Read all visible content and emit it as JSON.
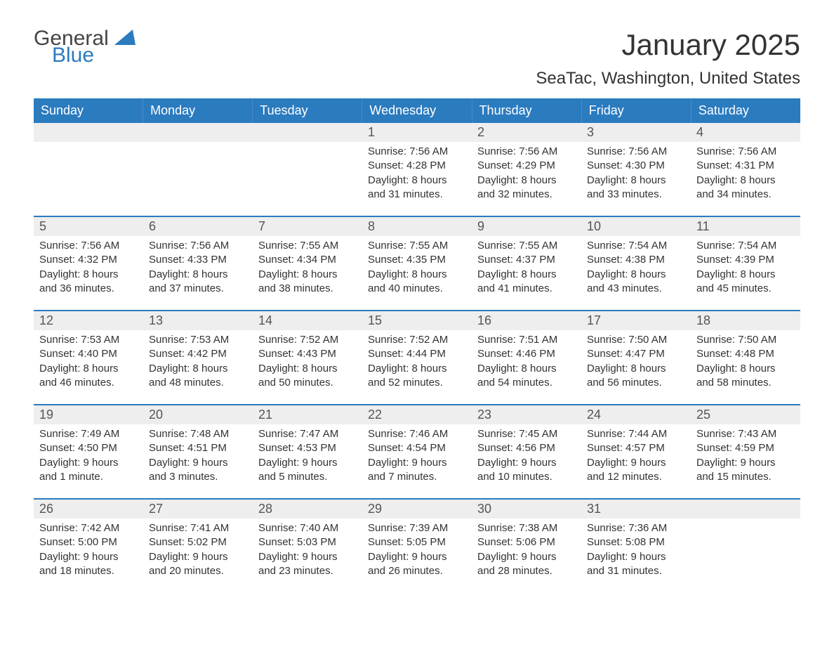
{
  "brand": {
    "general": "General",
    "blue": "Blue",
    "sail_color": "#2b7bbf"
  },
  "header": {
    "month_title": "January 2025",
    "location": "SeaTac, Washington, United States"
  },
  "colors": {
    "header_bg": "#2b7bbf",
    "header_fg": "#ffffff",
    "day_number_bg": "#eeeeee",
    "text": "#333333",
    "row_divider": "#2b7bbf",
    "background": "#ffffff"
  },
  "days_of_week": [
    "Sunday",
    "Monday",
    "Tuesday",
    "Wednesday",
    "Thursday",
    "Friday",
    "Saturday"
  ],
  "weeks": [
    [
      {
        "blank": true
      },
      {
        "blank": true
      },
      {
        "blank": true
      },
      {
        "n": "1",
        "sunrise": "Sunrise: 7:56 AM",
        "sunset": "Sunset: 4:28 PM",
        "daylight1": "Daylight: 8 hours",
        "daylight2": "and 31 minutes."
      },
      {
        "n": "2",
        "sunrise": "Sunrise: 7:56 AM",
        "sunset": "Sunset: 4:29 PM",
        "daylight1": "Daylight: 8 hours",
        "daylight2": "and 32 minutes."
      },
      {
        "n": "3",
        "sunrise": "Sunrise: 7:56 AM",
        "sunset": "Sunset: 4:30 PM",
        "daylight1": "Daylight: 8 hours",
        "daylight2": "and 33 minutes."
      },
      {
        "n": "4",
        "sunrise": "Sunrise: 7:56 AM",
        "sunset": "Sunset: 4:31 PM",
        "daylight1": "Daylight: 8 hours",
        "daylight2": "and 34 minutes."
      }
    ],
    [
      {
        "n": "5",
        "sunrise": "Sunrise: 7:56 AM",
        "sunset": "Sunset: 4:32 PM",
        "daylight1": "Daylight: 8 hours",
        "daylight2": "and 36 minutes."
      },
      {
        "n": "6",
        "sunrise": "Sunrise: 7:56 AM",
        "sunset": "Sunset: 4:33 PM",
        "daylight1": "Daylight: 8 hours",
        "daylight2": "and 37 minutes."
      },
      {
        "n": "7",
        "sunrise": "Sunrise: 7:55 AM",
        "sunset": "Sunset: 4:34 PM",
        "daylight1": "Daylight: 8 hours",
        "daylight2": "and 38 minutes."
      },
      {
        "n": "8",
        "sunrise": "Sunrise: 7:55 AM",
        "sunset": "Sunset: 4:35 PM",
        "daylight1": "Daylight: 8 hours",
        "daylight2": "and 40 minutes."
      },
      {
        "n": "9",
        "sunrise": "Sunrise: 7:55 AM",
        "sunset": "Sunset: 4:37 PM",
        "daylight1": "Daylight: 8 hours",
        "daylight2": "and 41 minutes."
      },
      {
        "n": "10",
        "sunrise": "Sunrise: 7:54 AM",
        "sunset": "Sunset: 4:38 PM",
        "daylight1": "Daylight: 8 hours",
        "daylight2": "and 43 minutes."
      },
      {
        "n": "11",
        "sunrise": "Sunrise: 7:54 AM",
        "sunset": "Sunset: 4:39 PM",
        "daylight1": "Daylight: 8 hours",
        "daylight2": "and 45 minutes."
      }
    ],
    [
      {
        "n": "12",
        "sunrise": "Sunrise: 7:53 AM",
        "sunset": "Sunset: 4:40 PM",
        "daylight1": "Daylight: 8 hours",
        "daylight2": "and 46 minutes."
      },
      {
        "n": "13",
        "sunrise": "Sunrise: 7:53 AM",
        "sunset": "Sunset: 4:42 PM",
        "daylight1": "Daylight: 8 hours",
        "daylight2": "and 48 minutes."
      },
      {
        "n": "14",
        "sunrise": "Sunrise: 7:52 AM",
        "sunset": "Sunset: 4:43 PM",
        "daylight1": "Daylight: 8 hours",
        "daylight2": "and 50 minutes."
      },
      {
        "n": "15",
        "sunrise": "Sunrise: 7:52 AM",
        "sunset": "Sunset: 4:44 PM",
        "daylight1": "Daylight: 8 hours",
        "daylight2": "and 52 minutes."
      },
      {
        "n": "16",
        "sunrise": "Sunrise: 7:51 AM",
        "sunset": "Sunset: 4:46 PM",
        "daylight1": "Daylight: 8 hours",
        "daylight2": "and 54 minutes."
      },
      {
        "n": "17",
        "sunrise": "Sunrise: 7:50 AM",
        "sunset": "Sunset: 4:47 PM",
        "daylight1": "Daylight: 8 hours",
        "daylight2": "and 56 minutes."
      },
      {
        "n": "18",
        "sunrise": "Sunrise: 7:50 AM",
        "sunset": "Sunset: 4:48 PM",
        "daylight1": "Daylight: 8 hours",
        "daylight2": "and 58 minutes."
      }
    ],
    [
      {
        "n": "19",
        "sunrise": "Sunrise: 7:49 AM",
        "sunset": "Sunset: 4:50 PM",
        "daylight1": "Daylight: 9 hours",
        "daylight2": "and 1 minute."
      },
      {
        "n": "20",
        "sunrise": "Sunrise: 7:48 AM",
        "sunset": "Sunset: 4:51 PM",
        "daylight1": "Daylight: 9 hours",
        "daylight2": "and 3 minutes."
      },
      {
        "n": "21",
        "sunrise": "Sunrise: 7:47 AM",
        "sunset": "Sunset: 4:53 PM",
        "daylight1": "Daylight: 9 hours",
        "daylight2": "and 5 minutes."
      },
      {
        "n": "22",
        "sunrise": "Sunrise: 7:46 AM",
        "sunset": "Sunset: 4:54 PM",
        "daylight1": "Daylight: 9 hours",
        "daylight2": "and 7 minutes."
      },
      {
        "n": "23",
        "sunrise": "Sunrise: 7:45 AM",
        "sunset": "Sunset: 4:56 PM",
        "daylight1": "Daylight: 9 hours",
        "daylight2": "and 10 minutes."
      },
      {
        "n": "24",
        "sunrise": "Sunrise: 7:44 AM",
        "sunset": "Sunset: 4:57 PM",
        "daylight1": "Daylight: 9 hours",
        "daylight2": "and 12 minutes."
      },
      {
        "n": "25",
        "sunrise": "Sunrise: 7:43 AM",
        "sunset": "Sunset: 4:59 PM",
        "daylight1": "Daylight: 9 hours",
        "daylight2": "and 15 minutes."
      }
    ],
    [
      {
        "n": "26",
        "sunrise": "Sunrise: 7:42 AM",
        "sunset": "Sunset: 5:00 PM",
        "daylight1": "Daylight: 9 hours",
        "daylight2": "and 18 minutes."
      },
      {
        "n": "27",
        "sunrise": "Sunrise: 7:41 AM",
        "sunset": "Sunset: 5:02 PM",
        "daylight1": "Daylight: 9 hours",
        "daylight2": "and 20 minutes."
      },
      {
        "n": "28",
        "sunrise": "Sunrise: 7:40 AM",
        "sunset": "Sunset: 5:03 PM",
        "daylight1": "Daylight: 9 hours",
        "daylight2": "and 23 minutes."
      },
      {
        "n": "29",
        "sunrise": "Sunrise: 7:39 AM",
        "sunset": "Sunset: 5:05 PM",
        "daylight1": "Daylight: 9 hours",
        "daylight2": "and 26 minutes."
      },
      {
        "n": "30",
        "sunrise": "Sunrise: 7:38 AM",
        "sunset": "Sunset: 5:06 PM",
        "daylight1": "Daylight: 9 hours",
        "daylight2": "and 28 minutes."
      },
      {
        "n": "31",
        "sunrise": "Sunrise: 7:36 AM",
        "sunset": "Sunset: 5:08 PM",
        "daylight1": "Daylight: 9 hours",
        "daylight2": "and 31 minutes."
      },
      {
        "blank": true
      }
    ]
  ]
}
